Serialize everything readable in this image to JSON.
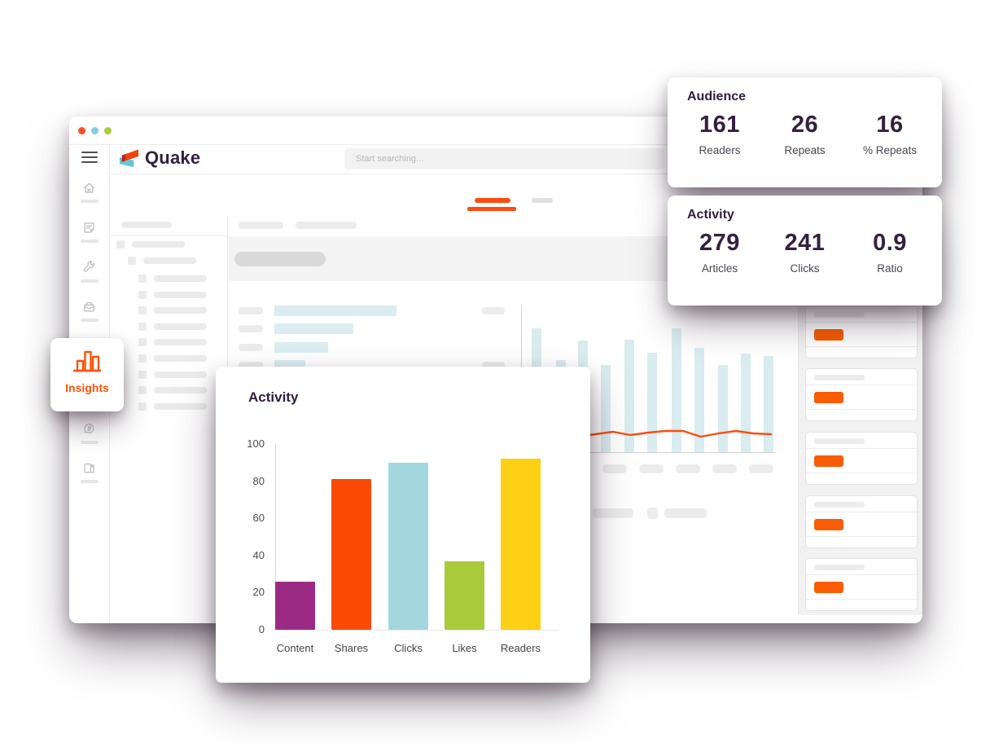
{
  "colors": {
    "accent_orange": "#fb4e0e",
    "panel_button_orange": "#f85d05",
    "dark_purple": "#33203f",
    "skeleton_blue": "#d9ecf0",
    "traffic_lights": [
      "#fb4e24",
      "#8accd9",
      "#a8cc3a"
    ]
  },
  "window": {
    "brand": "Quake",
    "search_placeholder": "Start searching...",
    "sidebar_icons": [
      "home-icon",
      "notes-icon",
      "tools-icon",
      "archive-icon",
      "comments-icon",
      "articles-icon"
    ]
  },
  "insights_badge": {
    "label": "Insights"
  },
  "audience_card": {
    "title": "Audience",
    "stats": [
      {
        "value": "161",
        "label": "Readers"
      },
      {
        "value": "26",
        "label": "Repeats"
      },
      {
        "value": "16",
        "label": "% Repeats"
      }
    ]
  },
  "activity_summary_card": {
    "title": "Activity",
    "stats": [
      {
        "value": "279",
        "label": "Articles"
      },
      {
        "value": "241",
        "label": "Clicks"
      },
      {
        "value": "0.9",
        "label": "Ratio"
      }
    ]
  },
  "chart_data": {
    "type": "bar",
    "title": "Activity",
    "categories": [
      "Content",
      "Shares",
      "Clicks",
      "Likes",
      "Readers"
    ],
    "values": [
      26,
      81,
      90,
      37,
      92
    ],
    "colors": [
      "#9b2a84",
      "#fb4a05",
      "#a3d7df",
      "#a9ca3b",
      "#fdd013"
    ],
    "xlabel": "",
    "ylabel": "",
    "ylim": [
      0,
      100
    ],
    "yticks": [
      0,
      20,
      40,
      60,
      80,
      100
    ],
    "grid": false,
    "legend": "none"
  },
  "background_charts": {
    "hbar_widths": [
      150,
      97,
      66,
      38
    ],
    "vbar_heights": [
      152,
      113,
      137,
      107,
      138,
      122,
      152,
      128,
      107,
      121,
      118
    ],
    "trend_line_offsets": [
      19,
      21,
      24,
      19,
      22,
      25,
      21,
      24,
      26,
      26,
      19,
      23,
      26,
      23,
      22
    ]
  },
  "right_panel": {
    "group_count": 5
  }
}
